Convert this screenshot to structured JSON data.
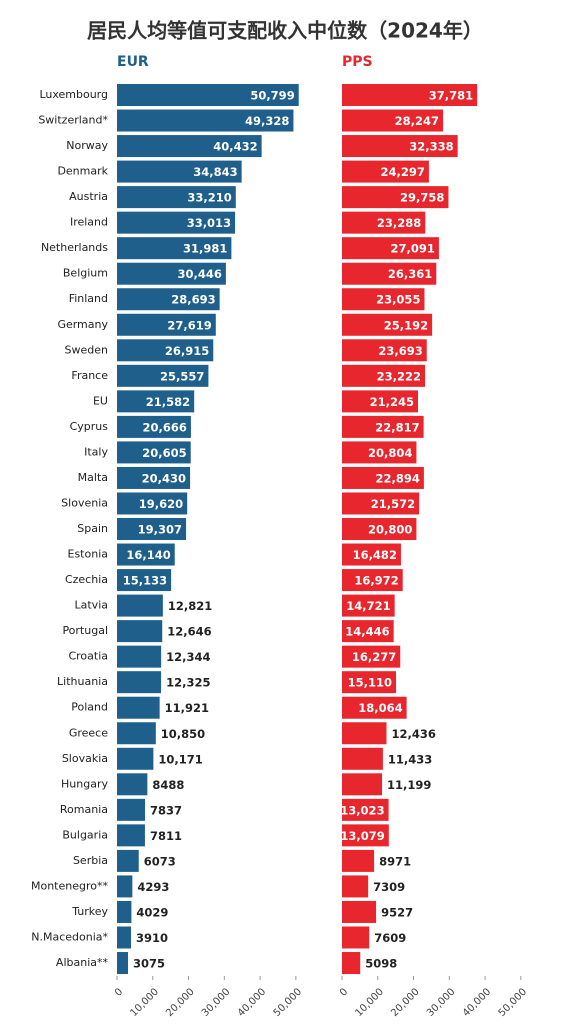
{
  "chart_data": {
    "type": "bar",
    "title": "居民人均等值可支配收入中位数（2024年）",
    "categories": [
      "Luxembourg",
      "Switzerland*",
      "Norway",
      "Denmark",
      "Austria",
      "Ireland",
      "Netherlands",
      "Belgium",
      "Finland",
      "Germany",
      "Sweden",
      "France",
      "EU",
      "Cyprus",
      "Italy",
      "Malta",
      "Slovenia",
      "Spain",
      "Estonia",
      "Czechia",
      "Latvia",
      "Portugal",
      "Croatia",
      "Lithuania",
      "Poland",
      "Greece",
      "Slovakia",
      "Hungary",
      "Romania",
      "Bulgaria",
      "Serbia",
      "Montenegro**",
      "Turkey",
      "N.Macedonia*",
      "Albania**"
    ],
    "series": [
      {
        "name": "EUR",
        "color": "#1f5f8b",
        "values": [
          50799,
          49328,
          40432,
          34843,
          33210,
          33013,
          31981,
          30446,
          28693,
          27619,
          26915,
          25557,
          21582,
          20666,
          20605,
          20430,
          19620,
          19307,
          16140,
          15133,
          12821,
          12646,
          12344,
          12325,
          11921,
          10850,
          10171,
          8488,
          7837,
          7811,
          6073,
          4293,
          4029,
          3910,
          3075
        ],
        "value_labels": [
          "50,799",
          "49,328",
          "40,432",
          "34,843",
          "33,210",
          "33,013",
          "31,981",
          "30,446",
          "28,693",
          "27,619",
          "26,915",
          "25,557",
          "21,582",
          "20,666",
          "20,605",
          "20,430",
          "19,620",
          "19,307",
          "16,140",
          "15,133",
          "12,821",
          "12,646",
          "12,344",
          "12,325",
          "11,921",
          "10,850",
          "10,171",
          "8488",
          "7837",
          "7811",
          "6073",
          "4293",
          "4029",
          "3910",
          "3075"
        ]
      },
      {
        "name": "PPS",
        "color": "#e8262e",
        "values": [
          37781,
          28247,
          32338,
          24297,
          29758,
          23288,
          27091,
          26361,
          23055,
          25192,
          23693,
          23222,
          21245,
          22817,
          20804,
          22894,
          21572,
          20800,
          16482,
          16972,
          14721,
          14446,
          16277,
          15110,
          18064,
          12436,
          11433,
          11199,
          13023,
          13079,
          8971,
          7309,
          9527,
          7609,
          5098
        ],
        "value_labels": [
          "37,781",
          "28,247",
          "32,338",
          "24,297",
          "29,758",
          "23,288",
          "27,091",
          "26,361",
          "23,055",
          "25,192",
          "23,693",
          "23,222",
          "21,245",
          "22,817",
          "20,804",
          "22,894",
          "21,572",
          "20,800",
          "16,482",
          "16,972",
          "14,721",
          "14,446",
          "16,277",
          "15,110",
          "18,064",
          "12,436",
          "11,433",
          "11,199",
          "13,023",
          "13,079",
          "8971",
          "7309",
          "9527",
          "7609",
          "5098"
        ]
      }
    ],
    "xlim": [
      0,
      52000
    ],
    "xticks": [
      0,
      {
        "value": 10000,
        "label": "10,000"
      },
      {
        "value": 20000,
        "label": "20,000"
      },
      {
        "value": 30000,
        "label": "30,000"
      },
      {
        "value": 40000,
        "label": "40,000"
      },
      {
        "value": 50000,
        "label": "50,000"
      }
    ]
  }
}
